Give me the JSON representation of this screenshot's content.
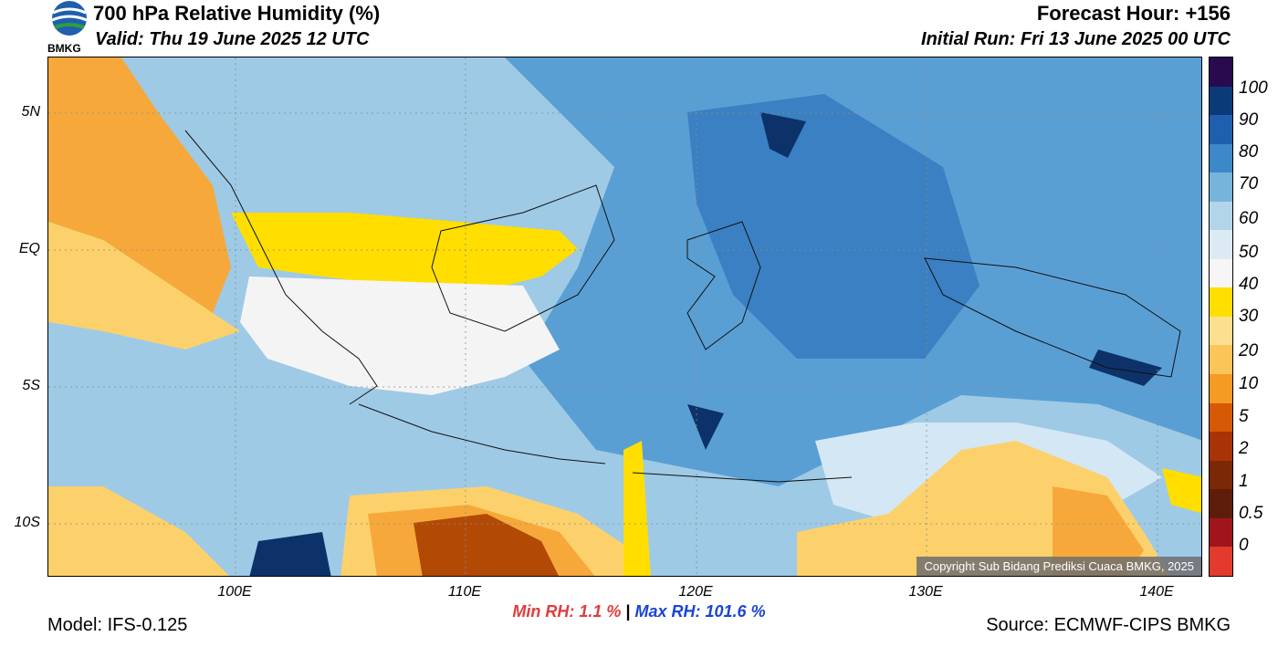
{
  "header": {
    "title": "700 hPa Relative Humidity (%)",
    "valid": "Valid: Thu 19 June 2025 12 UTC",
    "forecast_hour": "Forecast Hour: +156",
    "initial_run": "Initial Run: Fri 13 June 2025 00 UTC",
    "logo_text": "BMKG"
  },
  "map": {
    "lat_labels": [
      "5N",
      "EQ",
      "5S",
      "10S"
    ],
    "lon_labels": [
      "100E",
      "110E",
      "120E",
      "130E",
      "140E"
    ],
    "copyright": "Copyright Sub Bidang Prediksi Cuaca BMKG, 2025",
    "colors": {
      "very_dry": "#b24a06",
      "dry": "#f6a93a",
      "semi_dry": "#fcd16b",
      "yellow": "#ffde00",
      "white": "#f4f4f4",
      "pale_blue": "#d4e7f4",
      "light_blue": "#9ecae6",
      "mid_blue": "#5a9fd4",
      "blue": "#3a80c2",
      "dark_blue": "#1c5aa8",
      "navy": "#0c3269"
    }
  },
  "colorbar": {
    "labels": [
      "100",
      "90",
      "80",
      "70",
      "60",
      "50",
      "40",
      "30",
      "20",
      "10",
      "5",
      "2",
      "1",
      "0.5",
      "0"
    ],
    "segments": [
      "#2a0a4e",
      "#0b3a78",
      "#1f5fae",
      "#3d88c8",
      "#77b4dc",
      "#b3d5ea",
      "#dceaf3",
      "#f6f6f6",
      "#ffde00",
      "#fde08f",
      "#fcc55a",
      "#f59a23",
      "#d65a06",
      "#a83307",
      "#7b2806",
      "#5e1d0a",
      "#a0141c",
      "#e23b2e"
    ]
  },
  "stats": {
    "min": "Min RH:   1.1 %",
    "separator": "|",
    "max": "Max RH: 101.6 %"
  },
  "footer": {
    "model": "Model: IFS-0.125",
    "source": "Source: ECMWF-CIPS BMKG"
  }
}
